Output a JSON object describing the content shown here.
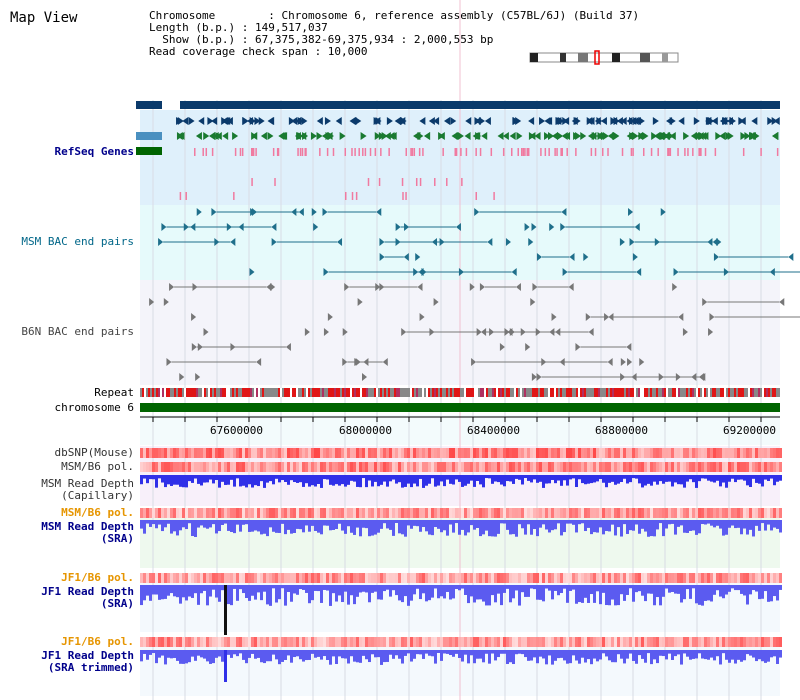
{
  "view": {
    "title": "Map View",
    "info": {
      "chromosome": "Chromosome        : Chromosome 6, reference assembly (C57BL/6J) (Build 37)",
      "length": "Length (b.p.) : 149,517,037",
      "show": "  Show (b.p.) : 67,375,382-69,375,934 : 2,000,553 bp",
      "coverage": "Read coverage check span : 10,000"
    }
  },
  "tracks": {
    "refseq": "RefSeq Genes",
    "msm_bac": "MSM BAC end pairs",
    "b6n_bac": "B6N BAC end pairs",
    "repeat": "Repeat",
    "chrom": "chromosome 6",
    "dbsnp": "dbSNP(Mouse)",
    "msm_b6_pol": "MSM/B6 pol.",
    "msm_depth_cap_1": "MSM Read Depth",
    "msm_depth_cap_2": "(Capillary)",
    "msm_b6_pol2": "MSM/B6 pol.",
    "msm_depth_sra_1": "MSM Read Depth",
    "msm_depth_sra_2": "(SRA)",
    "jf1_pol": "JF1/B6 pol.",
    "jf1_depth_sra_1": "JF1 Read Depth",
    "jf1_depth_sra_2": "(SRA)",
    "jf1_pol2": "JF1/B6 pol.",
    "jf1_depth_trim_1": "JF1 Read Depth",
    "jf1_depth_trim_2": "(SRA trimmed)"
  },
  "axis": {
    "ticks": [
      "67600000",
      "68000000",
      "68400000",
      "68800000",
      "69200000"
    ]
  },
  "colors": {
    "refseq_bg": "#dff0fb",
    "msm_bg": "#e6fafb",
    "b6n_bg": "#f4f4fa",
    "chrom": "#006400",
    "depth_blue": "#5b5bf0",
    "depth_dark_blue": "#2222dd",
    "pol_red": "#e62020"
  }
}
